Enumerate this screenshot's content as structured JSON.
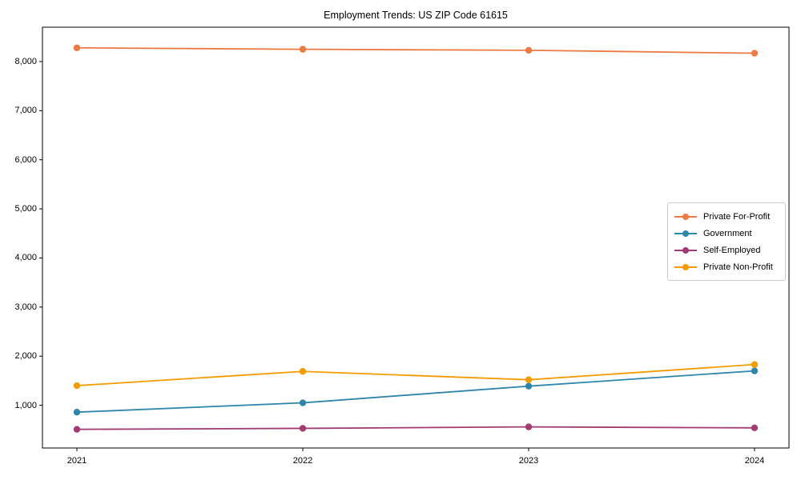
{
  "chart_data": {
    "type": "line",
    "title": "Employment Trends: US ZIP Code 61615",
    "xlabel": "",
    "ylabel": "",
    "categories": [
      "2021",
      "2022",
      "2023",
      "2024"
    ],
    "series": [
      {
        "name": "Private For-Profit",
        "color": "#ec7b43",
        "values": [
          8280,
          8250,
          8230,
          8170
        ]
      },
      {
        "name": "Government",
        "color": "#2e86ab",
        "values": [
          860,
          1050,
          1390,
          1700
        ]
      },
      {
        "name": "Self-Employed",
        "color": "#a23b72",
        "values": [
          510,
          530,
          560,
          540
        ]
      },
      {
        "name": "Private Non-Profit",
        "color": "#f49b00",
        "values": [
          1400,
          1690,
          1520,
          1830
        ]
      }
    ],
    "ylim": [
      130,
      8700
    ],
    "yticks": [
      1000,
      2000,
      3000,
      4000,
      5000,
      6000,
      7000,
      8000
    ],
    "ytick_labels": [
      "1,000",
      "2,000",
      "3,000",
      "4,000",
      "5,000",
      "6,000",
      "7,000",
      "8,000"
    ],
    "grid": false,
    "legend_position": "center right",
    "marker": "circle",
    "axis_color": "#000000"
  }
}
